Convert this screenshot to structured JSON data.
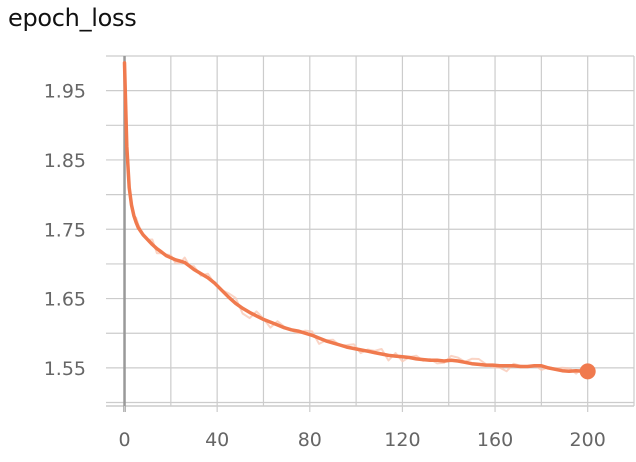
{
  "chart": {
    "title": "epoch_loss"
  },
  "chart_data": {
    "type": "line",
    "title": "epoch_loss",
    "xlabel": "",
    "ylabel": "",
    "xlim": [
      -8,
      220
    ],
    "ylim": [
      1.495,
      2.0
    ],
    "x_ticks": [
      0,
      40,
      80,
      120,
      160,
      200
    ],
    "x_tick_labels": [
      "0",
      "40",
      "80",
      "120",
      "160",
      "200"
    ],
    "y_ticks": [
      1.55,
      1.65,
      1.75,
      1.85,
      1.95
    ],
    "y_tick_labels": [
      "1.55",
      "1.65",
      "1.75",
      "1.85",
      "1.95"
    ],
    "grid": true,
    "legend": "none",
    "colors": {
      "line": "#f07a4e",
      "raw": "#f9c9b6",
      "grid": "#cccccc",
      "axis": "#999999",
      "tick_text": "#666666"
    },
    "series": [
      {
        "x": [
          0,
          1,
          2,
          3,
          4,
          5,
          6,
          8,
          10,
          12,
          14,
          16,
          18,
          20,
          22,
          24,
          26,
          28,
          30,
          33,
          36,
          39,
          42,
          45,
          48,
          51,
          54,
          57,
          60,
          63,
          66,
          69,
          72,
          75,
          78,
          81,
          84,
          87,
          90,
          93,
          96,
          99,
          102,
          105,
          108,
          111,
          114,
          117,
          120,
          123,
          126,
          129,
          132,
          135,
          138,
          141,
          144,
          147,
          150,
          153,
          156,
          159,
          162,
          165,
          168,
          171,
          174,
          177,
          180,
          183,
          186,
          189,
          192,
          195,
          198,
          200
        ],
        "values": [
          1.99,
          1.87,
          1.81,
          1.785,
          1.77,
          1.76,
          1.752,
          1.742,
          1.735,
          1.728,
          1.722,
          1.717,
          1.712,
          1.709,
          1.706,
          1.704,
          1.702,
          1.697,
          1.692,
          1.686,
          1.68,
          1.672,
          1.662,
          1.652,
          1.643,
          1.636,
          1.63,
          1.625,
          1.62,
          1.616,
          1.612,
          1.608,
          1.605,
          1.603,
          1.6,
          1.597,
          1.593,
          1.589,
          1.586,
          1.583,
          1.58,
          1.578,
          1.576,
          1.574,
          1.572,
          1.57,
          1.568,
          1.567,
          1.566,
          1.565,
          1.563,
          1.562,
          1.561,
          1.561,
          1.56,
          1.561,
          1.56,
          1.558,
          1.556,
          1.555,
          1.554,
          1.554,
          1.553,
          1.553,
          1.553,
          1.552,
          1.552,
          1.553,
          1.553,
          1.55,
          1.548,
          1.546,
          1.545,
          1.546,
          1.545,
          1.545
        ]
      }
    ]
  }
}
